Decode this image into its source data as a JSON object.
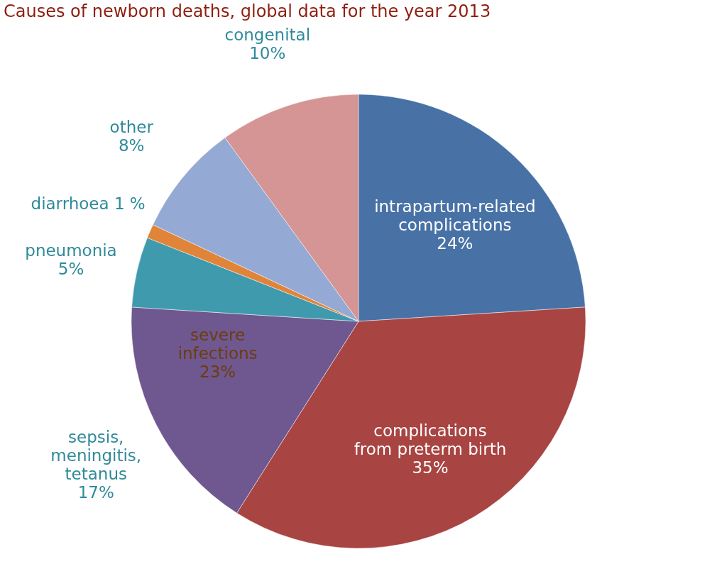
{
  "chart_data": {
    "type": "pie",
    "title": "Causes of newborn deaths, global data for the year 2013",
    "categories": [
      "intrapartum-related\ncomplications",
      "complications\nfrom preterm birth",
      "sepsis,\nmeningitis,\ntetanus",
      "pneumonia",
      "diarrhoea",
      "other",
      "congenital"
    ],
    "values": [
      24,
      35,
      17,
      5,
      1,
      8,
      10
    ],
    "value_labels": [
      "24%",
      "35%",
      "17%",
      "5%",
      "1 %",
      "8%",
      "10%"
    ],
    "colors": [
      "#4872a6",
      "#a84442",
      "#6f578f",
      "#3f9aae",
      "#e0843a",
      "#94a9d3",
      "#d49594"
    ],
    "annotations": [
      "severe\ninfections\n23%"
    ],
    "legend": false
  }
}
